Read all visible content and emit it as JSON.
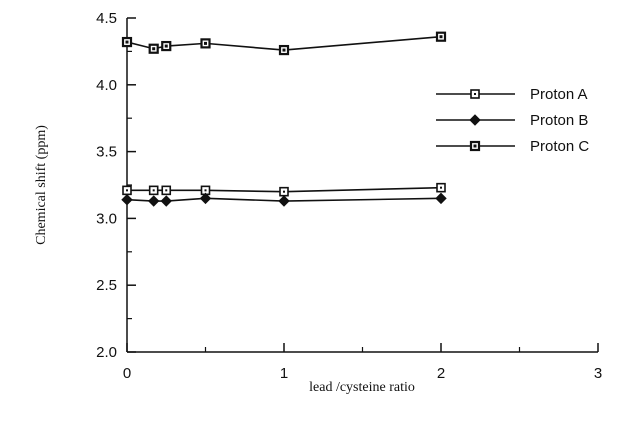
{
  "chart_data": {
    "type": "line",
    "xlabel": "lead /cysteine ratio",
    "ylabel": "Chemical shift (ppm)",
    "xlim": [
      0,
      3
    ],
    "ylim": [
      2.0,
      4.5
    ],
    "x_ticks": [
      "0",
      "1",
      "2",
      "3"
    ],
    "y_ticks": [
      "2.0",
      "2.5",
      "3.0",
      "3.5",
      "4.0",
      "4.5"
    ],
    "grid": false,
    "legend_position": "right",
    "x": [
      0,
      0.17,
      0.25,
      0.5,
      1,
      2
    ],
    "series": [
      {
        "name": "Proton A",
        "marker": "open-square",
        "values": [
          3.21,
          3.21,
          3.21,
          3.21,
          3.2,
          3.23
        ]
      },
      {
        "name": "Proton B",
        "marker": "filled-diamond",
        "values": [
          3.14,
          3.13,
          3.13,
          3.15,
          3.13,
          3.15
        ]
      },
      {
        "name": "Proton C",
        "marker": "dotted-square",
        "values": [
          4.32,
          4.27,
          4.29,
          4.31,
          4.26,
          4.36
        ]
      }
    ]
  }
}
